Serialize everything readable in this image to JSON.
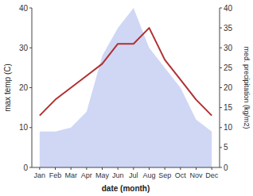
{
  "chart_data": {
    "type": "line",
    "x_label": "date (month)",
    "y_label": "max temp (C)",
    "y2_label": "med. precipitation (kg/m2)",
    "categories": [
      "Jan",
      "Feb",
      "Mar",
      "Apr",
      "May",
      "Jun",
      "Jul",
      "Aug",
      "Sep",
      "Oct",
      "Nov",
      "Dec"
    ],
    "series": [
      {
        "type": "area",
        "axis": "y2",
        "color": "#b0bcee",
        "values": [
          9,
          9,
          10,
          14,
          28,
          35,
          40,
          30,
          25,
          20,
          12,
          9
        ]
      },
      {
        "type": "line",
        "color": "#b03030",
        "values": [
          13,
          17,
          20,
          23,
          26,
          31,
          31,
          35,
          27,
          22,
          17,
          13
        ]
      }
    ],
    "ylim": [
      0,
      40
    ],
    "yticks": [
      0,
      10,
      20,
      30,
      40
    ],
    "y2lim": [
      0,
      40
    ],
    "y2ticks": [
      0,
      5,
      10,
      15,
      20,
      25,
      30,
      35,
      40
    ],
    "grid": false
  }
}
